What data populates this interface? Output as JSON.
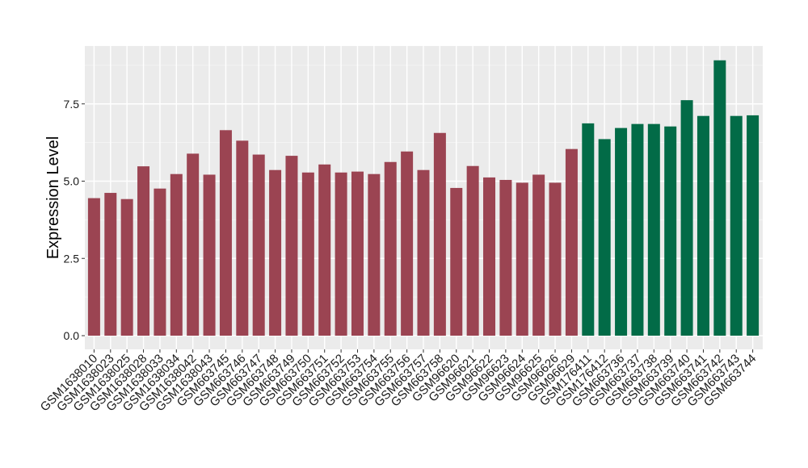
{
  "chart_data": {
    "type": "bar",
    "title": "",
    "xlabel": "",
    "ylabel": "Expression Level",
    "ylim": [
      0,
      9.3
    ],
    "yticks": [
      0.0,
      2.5,
      5.0,
      7.5
    ],
    "ytick_labels": [
      "0.0",
      "2.5",
      "5.0",
      "7.5"
    ],
    "grid": true,
    "legend": "none",
    "categories": [
      "GSM1638010",
      "GSM1638023",
      "GSM1638025",
      "GSM1638028",
      "GSM1638033",
      "GSM1638034",
      "GSM1638042",
      "GSM1638043",
      "GSM663745",
      "GSM663746",
      "GSM663747",
      "GSM663748",
      "GSM663749",
      "GSM663750",
      "GSM663751",
      "GSM663752",
      "GSM663753",
      "GSM663754",
      "GSM663755",
      "GSM663756",
      "GSM663757",
      "GSM663758",
      "GSM96620",
      "GSM96621",
      "GSM96622",
      "GSM96623",
      "GSM96624",
      "GSM96625",
      "GSM96626",
      "GSM96629",
      "GSM176411",
      "GSM176412",
      "GSM663736",
      "GSM663737",
      "GSM663738",
      "GSM663739",
      "GSM663740",
      "GSM663741",
      "GSM663742",
      "GSM663743",
      "GSM663744"
    ],
    "values": [
      4.45,
      4.62,
      4.42,
      5.48,
      4.76,
      5.23,
      5.89,
      5.21,
      6.65,
      6.31,
      5.86,
      5.36,
      5.82,
      5.28,
      5.54,
      5.28,
      5.31,
      5.23,
      5.62,
      5.96,
      5.36,
      6.56,
      4.78,
      5.49,
      5.12,
      5.04,
      4.95,
      5.21,
      4.95,
      6.04,
      6.87,
      6.36,
      6.72,
      6.85,
      6.85,
      6.77,
      7.62,
      7.11,
      8.91,
      7.11,
      7.13
    ],
    "groups": [
      0,
      0,
      0,
      0,
      0,
      0,
      0,
      0,
      0,
      0,
      0,
      0,
      0,
      0,
      0,
      0,
      0,
      0,
      0,
      0,
      0,
      0,
      0,
      0,
      0,
      0,
      0,
      0,
      0,
      0,
      1,
      1,
      1,
      1,
      1,
      1,
      1,
      1,
      1,
      1,
      1
    ],
    "colors": {
      "group_0": "#9B4452",
      "group_1": "#026B47",
      "panel_background": "#EBEBEB",
      "grid_major": "#FFFFFF",
      "grid_minor": "#F4F4F4"
    }
  }
}
